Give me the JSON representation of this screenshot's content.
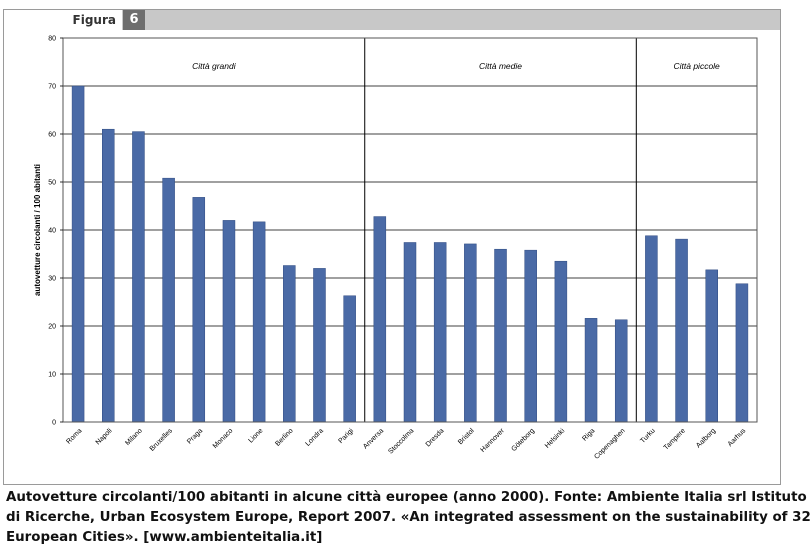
{
  "figure": {
    "label": "Figura",
    "number": "6"
  },
  "caption": {
    "line1": "Autovetture circolanti/100 abitanti in alcune città europee (anno 2000). Fonte: Ambiente Italia srl Istituto",
    "line2": "di Ricerche, Urban Ecosystem Europe, Report 2007. «An integrated assessment on the sustainability of 32",
    "line3": "European Cities». [www.ambienteitalia.it]"
  },
  "chart_data": {
    "type": "bar",
    "ylabel": "autovetture circolanti / 100 abitanti",
    "ylim": [
      0,
      80
    ],
    "yticks": [
      0,
      10,
      20,
      30,
      40,
      50,
      60,
      70,
      80
    ],
    "grid": true,
    "bar_color": "#4a6aa6",
    "groups": [
      {
        "name": "Città grandi",
        "start": 0,
        "end": 9
      },
      {
        "name": "Città medie",
        "start": 10,
        "end": 18
      },
      {
        "name": "Città piccole",
        "start": 19,
        "end": 22
      }
    ],
    "categories": [
      "Roma",
      "Napoli",
      "Milano",
      "Bruxelles",
      "Praga",
      "Monaco",
      "Lione",
      "Berlino",
      "Londra",
      "Parigi",
      "Anversa",
      "Stoccolma",
      "Dresda",
      "Bristol",
      "Hannover",
      "Göteborg",
      "Helsinki",
      "Riga",
      "Copenaghen",
      "Turku",
      "Tampere",
      "Aalborg",
      "Aarhus"
    ],
    "values": [
      70,
      61,
      60.5,
      50.8,
      46.8,
      42,
      41.7,
      32.6,
      32,
      26.3,
      42.8,
      37.4,
      37.4,
      37.1,
      36,
      35.8,
      33.5,
      21.6,
      21.3,
      38.8,
      38.1,
      31.7,
      28.8
    ]
  }
}
